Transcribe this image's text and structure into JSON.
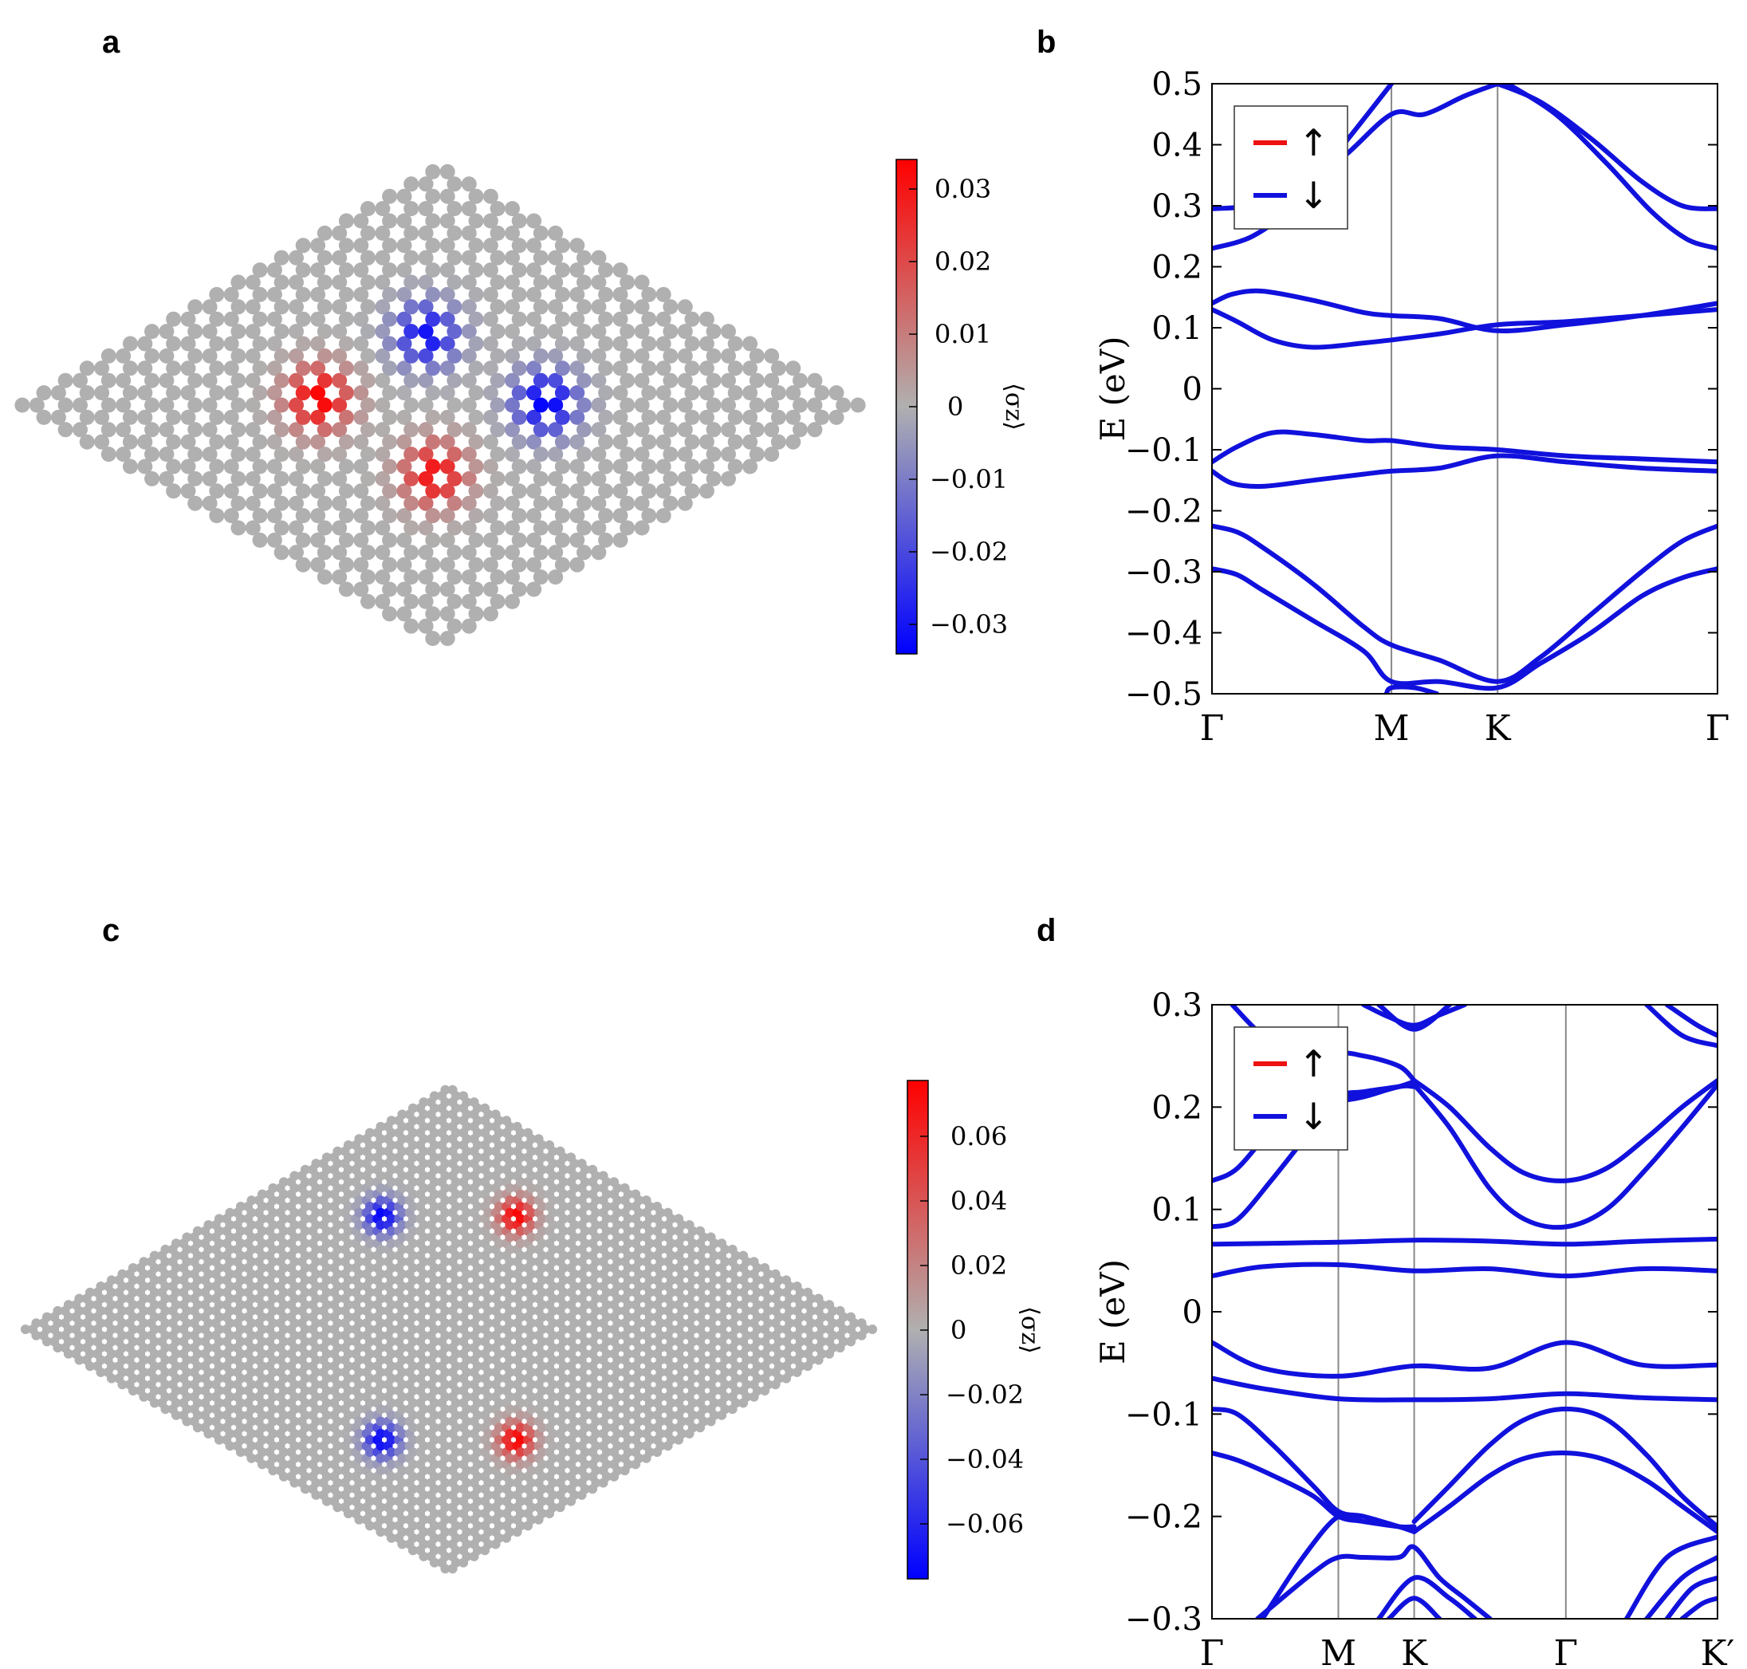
{
  "panels": [
    {
      "id": "a",
      "label": "a",
      "type": "heatmap",
      "lattice": {
        "shape": "rhombus",
        "rows": 20,
        "cols": 20,
        "site_grid": "honeycomb"
      },
      "colorbar": {
        "label": "⟨σz⟩",
        "ticks": [
          "0.03",
          "0.02",
          "0.01",
          "0",
          "−0.01",
          "−0.02",
          "−0.03"
        ],
        "range": [
          -0.034,
          0.034
        ]
      }
    },
    {
      "id": "c",
      "label": "c",
      "type": "heatmap",
      "lattice": {
        "shape": "rhombus",
        "rows": 40,
        "cols": 40,
        "site_grid": "honeycomb"
      },
      "colorbar": {
        "label": "⟨σz⟩",
        "ticks": [
          "0.06",
          "0.04",
          "0.02",
          "0",
          "−0.02",
          "−0.04",
          "−0.06"
        ],
        "range": [
          -0.077,
          0.077
        ]
      }
    }
  ],
  "chart_data": [
    {
      "id": "b",
      "label": "b",
      "type": "line",
      "ylabel": "E (eV)",
      "ylim": [
        -0.5,
        0.5
      ],
      "yticks": [
        "0.5",
        "0.4",
        "0.3",
        "0.2",
        "0.1",
        "0",
        "−0.1",
        "−0.2",
        "−0.3",
        "−0.4",
        "−0.5"
      ],
      "kpoints": [
        {
          "label": "Γ",
          "x": 0
        },
        {
          "label": "M",
          "x": 0.355
        },
        {
          "label": "K",
          "x": 0.565
        },
        {
          "label": "Γ",
          "x": 1
        }
      ],
      "legend": {
        "items": [
          {
            "label": "↑",
            "color": "#ee1111"
          },
          {
            "label": "↓",
            "color": "#1111dd"
          }
        ],
        "position": "top-left"
      },
      "series": [
        {
          "name": "band1",
          "spin": "down",
          "x": [
            0,
            0.08,
            0.16,
            0.26,
            0.355,
            0.42,
            0.5,
            0.565
          ],
          "y": [
            0.295,
            0.3,
            0.32,
            0.38,
            0.45,
            0.45,
            0.48,
            0.5
          ]
        },
        {
          "name": "band2",
          "spin": "down",
          "x": [
            0,
            0.08,
            0.16,
            0.26,
            0.355
          ],
          "y": [
            0.23,
            0.25,
            0.3,
            0.4,
            0.5
          ]
        },
        {
          "name": "band3",
          "spin": "down",
          "x": [
            0.565,
            0.65,
            0.75,
            0.85,
            0.93,
            1
          ],
          "y": [
            0.5,
            0.47,
            0.41,
            0.34,
            0.3,
            0.295
          ]
        },
        {
          "name": "band4",
          "spin": "down",
          "x": [
            0.585,
            0.68,
            0.78,
            0.87,
            0.94,
            1
          ],
          "y": [
            0.5,
            0.45,
            0.37,
            0.29,
            0.245,
            0.23
          ]
        },
        {
          "name": "band5",
          "spin": "down",
          "x": [
            0,
            0.04,
            0.1,
            0.2,
            0.3,
            0.355,
            0.45,
            0.565,
            0.7,
            0.85,
            1
          ],
          "y": [
            0.14,
            0.155,
            0.16,
            0.145,
            0.125,
            0.12,
            0.115,
            0.095,
            0.105,
            0.12,
            0.14
          ]
        },
        {
          "name": "band6",
          "spin": "down",
          "x": [
            0,
            0.05,
            0.12,
            0.2,
            0.3,
            0.355,
            0.45,
            0.565,
            0.7,
            0.85,
            1
          ],
          "y": [
            0.13,
            0.11,
            0.08,
            0.068,
            0.075,
            0.08,
            0.09,
            0.105,
            0.11,
            0.12,
            0.13
          ]
        },
        {
          "name": "band7",
          "spin": "down",
          "x": [
            0,
            0.05,
            0.12,
            0.2,
            0.3,
            0.355,
            0.45,
            0.565,
            0.7,
            0.85,
            1
          ],
          "y": [
            -0.12,
            -0.095,
            -0.072,
            -0.075,
            -0.085,
            -0.085,
            -0.095,
            -0.1,
            -0.11,
            -0.115,
            -0.12
          ]
        },
        {
          "name": "band8",
          "spin": "down",
          "x": [
            0,
            0.04,
            0.1,
            0.2,
            0.3,
            0.355,
            0.45,
            0.565,
            0.7,
            0.85,
            1
          ],
          "y": [
            -0.135,
            -0.155,
            -0.16,
            -0.15,
            -0.14,
            -0.135,
            -0.13,
            -0.11,
            -0.12,
            -0.13,
            -0.135
          ]
        },
        {
          "name": "band9",
          "spin": "down",
          "x": [
            0,
            0.05,
            0.1,
            0.2,
            0.3,
            0.355,
            0.45,
            0.565,
            0.65,
            0.75,
            0.85,
            0.93,
            1
          ],
          "y": [
            -0.225,
            -0.235,
            -0.26,
            -0.32,
            -0.39,
            -0.42,
            -0.445,
            -0.48,
            -0.44,
            -0.37,
            -0.3,
            -0.25,
            -0.225
          ]
        },
        {
          "name": "band10",
          "spin": "down",
          "x": [
            0,
            0.05,
            0.1,
            0.2,
            0.3,
            0.355,
            0.45,
            0.565,
            0.65,
            0.75,
            0.85,
            0.93,
            1
          ],
          "y": [
            -0.295,
            -0.305,
            -0.33,
            -0.38,
            -0.43,
            -0.48,
            -0.48,
            -0.49,
            -0.45,
            -0.4,
            -0.34,
            -0.31,
            -0.295
          ]
        },
        {
          "name": "band11",
          "spin": "down",
          "x": [
            0.345,
            0.355,
            0.4,
            0.445
          ],
          "y": [
            -0.5,
            -0.49,
            -0.49,
            -0.5
          ]
        }
      ]
    },
    {
      "id": "d",
      "label": "d",
      "type": "line",
      "ylabel": "E (eV)",
      "ylim": [
        -0.3,
        0.3
      ],
      "yticks": [
        "0.3",
        "0.2",
        "0.1",
        "0",
        "−0.1",
        "−0.2",
        "−0.3"
      ],
      "kpoints": [
        {
          "label": "Γ",
          "x": 0
        },
        {
          "label": "M",
          "x": 0.25
        },
        {
          "label": "K",
          "x": 0.4
        },
        {
          "label": "Γ",
          "x": 0.7
        },
        {
          "label": "K′",
          "x": 1
        }
      ],
      "legend": {
        "items": [
          {
            "label": "↑",
            "color": "#ee1111"
          },
          {
            "label": "↓",
            "color": "#1111dd"
          }
        ],
        "position": "top-left"
      },
      "series": [
        {
          "name": "f1",
          "spin": "down",
          "x": [
            0,
            0.25,
            0.4,
            0.55,
            0.7,
            0.85,
            1
          ],
          "y": [
            0.066,
            0.068,
            0.07,
            0.069,
            0.066,
            0.069,
            0.071
          ]
        },
        {
          "name": "f2",
          "spin": "down",
          "x": [
            0,
            0.1,
            0.25,
            0.4,
            0.55,
            0.7,
            0.85,
            1
          ],
          "y": [
            0.035,
            0.044,
            0.046,
            0.04,
            0.042,
            0.035,
            0.042,
            0.04
          ]
        },
        {
          "name": "f3",
          "spin": "down",
          "x": [
            0,
            0.1,
            0.25,
            0.4,
            0.55,
            0.7,
            0.85,
            1
          ],
          "y": [
            -0.03,
            -0.055,
            -0.063,
            -0.053,
            -0.055,
            -0.03,
            -0.052,
            -0.052
          ]
        },
        {
          "name": "f4",
          "spin": "down",
          "x": [
            0,
            0.1,
            0.25,
            0.4,
            0.55,
            0.7,
            0.85,
            1
          ],
          "y": [
            -0.065,
            -0.075,
            -0.085,
            -0.086,
            -0.085,
            -0.08,
            -0.084,
            -0.086
          ]
        },
        {
          "name": "u1",
          "spin": "down",
          "x": [
            0,
            0.05,
            0.12,
            0.2,
            0.25,
            0.3,
            0.37,
            0.4
          ],
          "y": [
            0.128,
            0.14,
            0.18,
            0.22,
            0.25,
            0.25,
            0.24,
            0.226
          ]
        },
        {
          "name": "u2",
          "spin": "down",
          "x": [
            0,
            0.05,
            0.12,
            0.2,
            0.25,
            0.3,
            0.37,
            0.4
          ],
          "y": [
            0.083,
            0.09,
            0.13,
            0.18,
            0.21,
            0.215,
            0.22,
            0.222
          ]
        },
        {
          "name": "u3",
          "spin": "down",
          "x": [
            0.1,
            0.15,
            0.2,
            0.25,
            0.3,
            0.37,
            0.4
          ],
          "y": [
            0.19,
            0.19,
            0.195,
            0.205,
            0.21,
            0.22,
            0.22
          ]
        },
        {
          "name": "u4",
          "spin": "down",
          "x": [
            0.4,
            0.47,
            0.55,
            0.62,
            0.7,
            0.78,
            0.86,
            0.93,
            1
          ],
          "y": [
            0.226,
            0.2,
            0.16,
            0.135,
            0.128,
            0.14,
            0.17,
            0.2,
            0.226
          ]
        },
        {
          "name": "u5",
          "spin": "down",
          "x": [
            0.4,
            0.47,
            0.55,
            0.62,
            0.7,
            0.78,
            0.86,
            0.93,
            1
          ],
          "y": [
            0.222,
            0.18,
            0.12,
            0.09,
            0.083,
            0.1,
            0.14,
            0.18,
            0.222
          ]
        },
        {
          "name": "u6",
          "spin": "down",
          "x": [
            0.04,
            0.1,
            0.15
          ],
          "y": [
            0.3,
            0.27,
            0.26
          ]
        },
        {
          "name": "u7",
          "spin": "down",
          "x": [
            0.3,
            0.35,
            0.4,
            0.45,
            0.5
          ],
          "y": [
            0.3,
            0.288,
            0.28,
            0.29,
            0.3
          ]
        },
        {
          "name": "u8",
          "spin": "down",
          "x": [
            0.33,
            0.4,
            0.47
          ],
          "y": [
            0.3,
            0.276,
            0.3
          ]
        },
        {
          "name": "u9",
          "spin": "down",
          "x": [
            0.86,
            0.93,
            1
          ],
          "y": [
            0.3,
            0.27,
            0.26
          ]
        },
        {
          "name": "u10",
          "spin": "down",
          "x": [
            0.9,
            0.96,
            1
          ],
          "y": [
            0.3,
            0.28,
            0.27
          ]
        },
        {
          "name": "u11",
          "spin": "down",
          "x": [
            0.12,
            0.2,
            0.25,
            0.3,
            0.37,
            0.4
          ],
          "y": [
            0.2,
            0.205,
            0.208,
            0.212,
            0.22,
            0.225
          ]
        },
        {
          "name": "l1",
          "spin": "down",
          "x": [
            0,
            0.05,
            0.12,
            0.2,
            0.25,
            0.3,
            0.37,
            0.4
          ],
          "y": [
            -0.095,
            -0.1,
            -0.13,
            -0.17,
            -0.195,
            -0.2,
            -0.21,
            -0.215
          ]
        },
        {
          "name": "l2",
          "spin": "down",
          "x": [
            0,
            0.05,
            0.12,
            0.2,
            0.25,
            0.3,
            0.37,
            0.4
          ],
          "y": [
            -0.138,
            -0.145,
            -0.16,
            -0.18,
            -0.2,
            -0.205,
            -0.21,
            -0.21
          ]
        },
        {
          "name": "l3",
          "spin": "down",
          "x": [
            0.4,
            0.47,
            0.55,
            0.62,
            0.7,
            0.78,
            0.86,
            0.93,
            1
          ],
          "y": [
            -0.205,
            -0.17,
            -0.13,
            -0.105,
            -0.095,
            -0.105,
            -0.14,
            -0.18,
            -0.21
          ]
        },
        {
          "name": "l4",
          "spin": "down",
          "x": [
            0.4,
            0.47,
            0.55,
            0.62,
            0.7,
            0.78,
            0.86,
            0.93,
            1
          ],
          "y": [
            -0.215,
            -0.19,
            -0.16,
            -0.143,
            -0.138,
            -0.145,
            -0.165,
            -0.19,
            -0.215
          ]
        },
        {
          "name": "l5",
          "spin": "down",
          "x": [
            0.1,
            0.18,
            0.25,
            0.3,
            0.37,
            0.4
          ],
          "y": [
            -0.3,
            -0.24,
            -0.2,
            -0.205,
            -0.21,
            -0.215
          ]
        },
        {
          "name": "l6",
          "spin": "down",
          "x": [
            0.09,
            0.2,
            0.25,
            0.3,
            0.37,
            0.4,
            0.45,
            0.5,
            0.55
          ],
          "y": [
            -0.3,
            -0.255,
            -0.24,
            -0.24,
            -0.24,
            -0.23,
            -0.26,
            -0.28,
            -0.3
          ]
        },
        {
          "name": "l7",
          "spin": "down",
          "x": [
            0.33,
            0.4,
            0.47,
            0.52
          ],
          "y": [
            -0.3,
            -0.26,
            -0.28,
            -0.3
          ]
        },
        {
          "name": "l8",
          "spin": "down",
          "x": [
            0.35,
            0.4,
            0.45
          ],
          "y": [
            -0.3,
            -0.28,
            -0.3
          ]
        },
        {
          "name": "l9",
          "spin": "down",
          "x": [
            0.82,
            0.9,
            1
          ],
          "y": [
            -0.3,
            -0.24,
            -0.22
          ]
        },
        {
          "name": "l10",
          "spin": "down",
          "x": [
            0.86,
            0.93,
            1
          ],
          "y": [
            -0.3,
            -0.26,
            -0.24
          ]
        },
        {
          "name": "l11",
          "spin": "down",
          "x": [
            0.9,
            0.95,
            1
          ],
          "y": [
            -0.3,
            -0.27,
            -0.26
          ]
        },
        {
          "name": "l12",
          "spin": "down",
          "x": [
            0.93,
            0.97,
            1
          ],
          "y": [
            -0.3,
            -0.285,
            -0.28
          ]
        }
      ]
    }
  ]
}
